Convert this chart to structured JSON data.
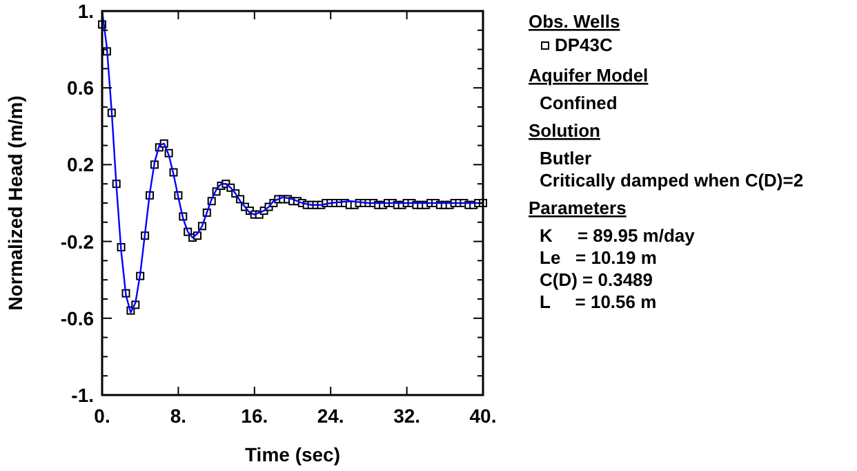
{
  "chart_data": {
    "type": "scatter",
    "xlabel": "Time (sec)",
    "ylabel": "Normalized Head (m/m)",
    "legend_title": "Obs. Wells",
    "legend": "right",
    "grid": false,
    "xlim": [
      0,
      40
    ],
    "ylim": [
      -1,
      1
    ],
    "xticks": [
      {
        "value": 0,
        "label": "0."
      },
      {
        "value": 8,
        "label": "8."
      },
      {
        "value": 16,
        "label": "16."
      },
      {
        "value": 24,
        "label": "24."
      },
      {
        "value": 32,
        "label": "32."
      },
      {
        "value": 40,
        "label": "40."
      }
    ],
    "yticks": [
      {
        "value": -1,
        "label": "-1."
      },
      {
        "value": -0.9,
        "label": null
      },
      {
        "value": -0.8,
        "label": null
      },
      {
        "value": -0.7,
        "label": null
      },
      -0.6,
      {
        "value": -0.5,
        "label": null
      },
      {
        "value": -0.4,
        "label": null
      },
      {
        "value": -0.3,
        "label": null
      },
      -0.2,
      {
        "value": -0.1,
        "label": null
      },
      {
        "value": 0,
        "label": null
      },
      {
        "value": 0.1,
        "label": null
      },
      0.2,
      {
        "value": 0.3,
        "label": null
      },
      {
        "value": 0.4,
        "label": null
      },
      {
        "value": 0.5,
        "label": null
      },
      0.6,
      {
        "value": 0.7,
        "label": null
      },
      {
        "value": 0.8,
        "label": null
      },
      {
        "value": 0.9,
        "label": null
      },
      {
        "value": 1,
        "label": "1."
      }
    ],
    "series": [
      {
        "name": "DP43C",
        "marker": "square",
        "color": "#000000",
        "x": [
          0,
          0.5,
          1,
          1.5,
          2,
          2.5,
          3,
          3.5,
          4,
          4.5,
          5,
          5.5,
          6,
          6.5,
          7,
          7.5,
          8,
          8.5,
          9,
          9.5,
          10,
          10.5,
          11,
          11.5,
          12,
          12.5,
          13,
          13.5,
          14,
          14.5,
          15,
          15.5,
          16,
          16.5,
          17,
          17.5,
          18,
          18.5,
          19,
          19.5,
          20,
          20.5,
          21,
          21.5,
          22,
          22.5,
          23,
          23.5,
          24,
          24.5,
          25,
          25.5,
          26,
          26.5,
          27,
          27.5,
          28,
          28.5,
          29,
          29.5,
          30,
          30.5,
          31,
          31.5,
          32,
          32.5,
          33,
          33.5,
          34,
          34.5,
          35,
          35.5,
          36,
          36.5,
          37,
          37.5,
          38,
          38.5,
          39,
          39.5,
          40
        ],
        "values": [
          0.93,
          0.79,
          0.47,
          0.1,
          -0.23,
          -0.47,
          -0.56,
          -0.53,
          -0.38,
          -0.17,
          0.04,
          0.2,
          0.29,
          0.31,
          0.26,
          0.16,
          0.04,
          -0.07,
          -0.15,
          -0.18,
          -0.17,
          -0.12,
          -0.05,
          0.01,
          0.06,
          0.09,
          0.1,
          0.08,
          0.05,
          0.02,
          -0.02,
          -0.04,
          -0.06,
          -0.06,
          -0.04,
          -0.02,
          0,
          0.02,
          0.02,
          0.02,
          0.01,
          0.01,
          0,
          -0.01,
          -0.01,
          -0.01,
          -0.01,
          0,
          0,
          0,
          0,
          0,
          -0.01,
          -0.01,
          0,
          0,
          0,
          0,
          -0.01,
          -0.01,
          0,
          0,
          -0.01,
          -0.01,
          0,
          0,
          -0.01,
          -0.01,
          -0.01,
          0,
          0,
          -0.01,
          -0.01,
          -0.01,
          0,
          0,
          0,
          -0.01,
          -0.01,
          0,
          0
        ]
      },
      {
        "type": "line",
        "color": "#0000ff",
        "x": [
          0,
          0.5,
          1,
          1.5,
          2,
          2.5,
          3,
          3.5,
          4,
          4.5,
          5,
          5.5,
          6,
          6.5,
          7,
          7.5,
          8,
          8.5,
          9,
          9.5,
          10,
          10.5,
          11,
          11.5,
          12,
          12.5,
          13,
          13.5,
          14,
          14.5,
          15,
          15.5,
          16,
          16.5,
          17,
          17.5,
          18,
          19,
          20,
          21,
          22,
          23,
          24,
          26,
          28,
          30,
          40
        ],
        "values": [
          1,
          0.81,
          0.48,
          0.09,
          -0.25,
          -0.48,
          -0.57,
          -0.52,
          -0.37,
          -0.16,
          0.05,
          0.21,
          0.3,
          0.31,
          0.25,
          0.15,
          0.03,
          -0.08,
          -0.15,
          -0.18,
          -0.16,
          -0.12,
          -0.05,
          0.02,
          0.07,
          0.1,
          0.1,
          0.08,
          0.05,
          0.01,
          -0.02,
          -0.05,
          -0.06,
          -0.05,
          -0.04,
          -0.02,
          0.01,
          0.03,
          0.02,
          0,
          -0.01,
          -0.01,
          0,
          0.01,
          0,
          0,
          0
        ]
      }
    ],
    "annotations": [
      "Aquifer Model",
      "Confined",
      "Solution",
      "Butler",
      "Critically damped when C(D)=2",
      "Parameters",
      "K     = 89.95 m/day",
      "Le   = 10.19 m",
      "C(D) = 0.3489",
      "L     = 10.56 m"
    ]
  }
}
